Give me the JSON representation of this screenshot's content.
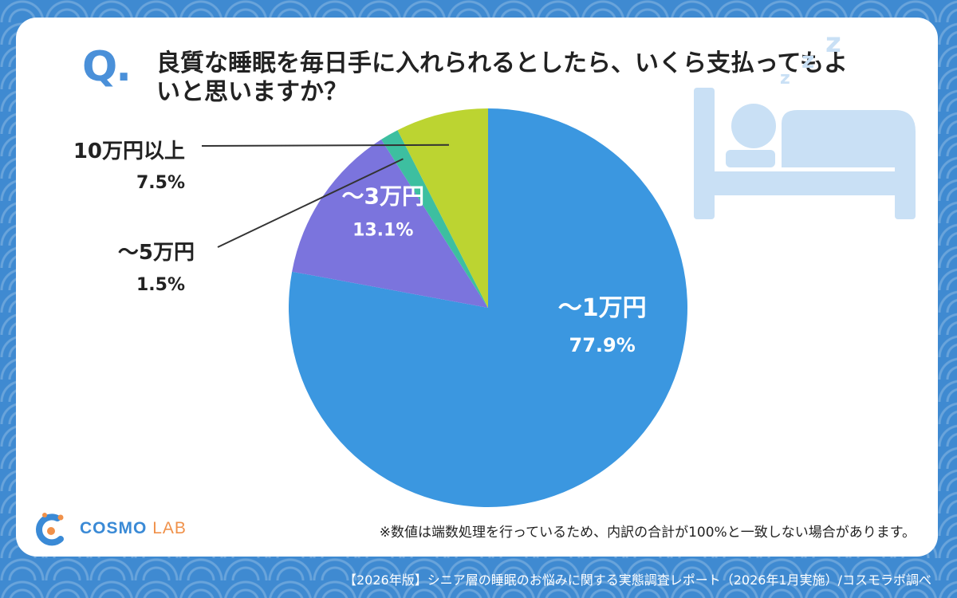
{
  "question": {
    "mark": "Q.",
    "text": "良質な睡眠を毎日手に入れられるとしたら、いくら支払ってもよいと思いますか？"
  },
  "chart_data": {
    "type": "pie",
    "start_angle_deg": 0,
    "direction": "clockwise",
    "slices": [
      {
        "label": "～1万円",
        "value": 77.9,
        "value_text": "77.9%",
        "color": "#3b97e0",
        "label_color": "#ffffff"
      },
      {
        "label": "～3万円",
        "value": 13.1,
        "value_text": "13.1%",
        "color": "#7b74dd",
        "label_color": "#ffffff"
      },
      {
        "label": "～5万円",
        "value": 1.5,
        "value_text": "1.5%",
        "color": "#3dbfa0",
        "label_color": "#222222"
      },
      {
        "label": "10万円以上",
        "value": 7.5,
        "value_text": "7.5%",
        "color": "#bcd431",
        "label_color": "#222222"
      }
    ]
  },
  "footnote": "※数値は端数処理を行っているため、内訳の合計が100%と一致しない場合があります。",
  "logo": {
    "main": "COSMO",
    "sub": "LAB"
  },
  "bottom_caption": "【2026年版】シニア層の睡眠のお悩みに関する実態調査レポート（2026年1月実施）/コスモラボ調べ",
  "colors": {
    "background": "#3f8ad1",
    "accent": "#4a90d9",
    "bed_icon": "#c9e0f5"
  },
  "icons": {
    "bed": "bed-sleep-icon",
    "logo": "cosmo-lab-logo-icon"
  }
}
